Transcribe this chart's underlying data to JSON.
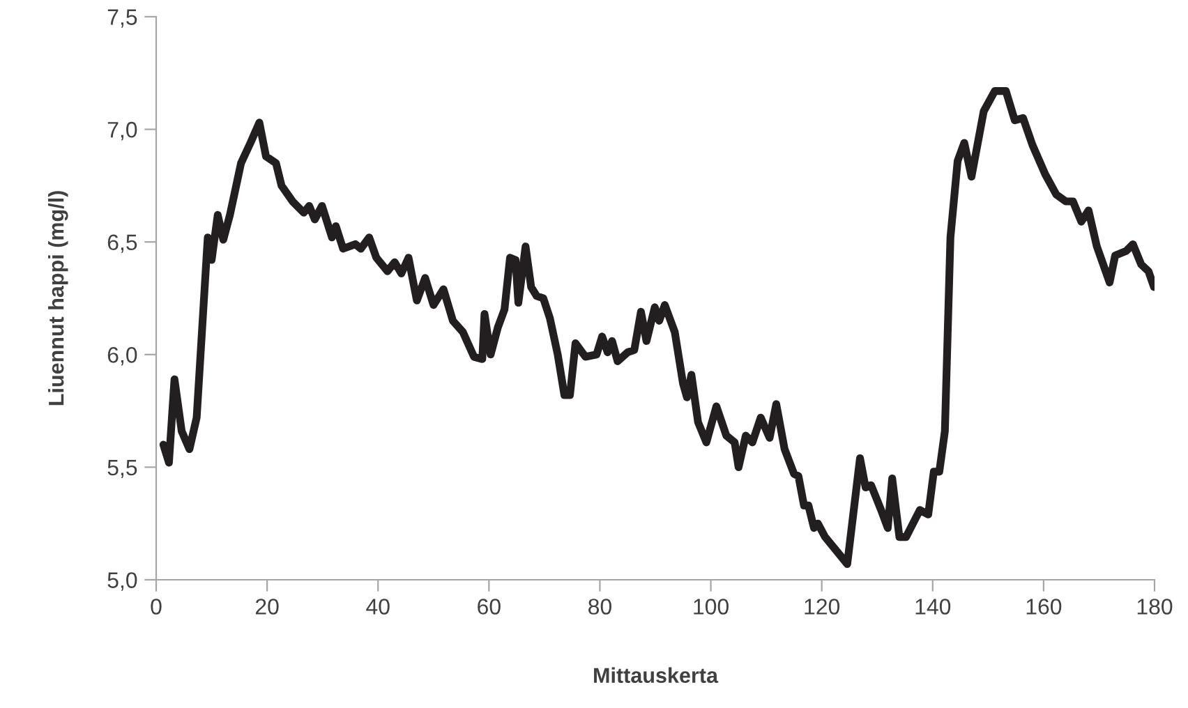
{
  "chart_data": {
    "type": "line",
    "xlabel": "Mittauskerta",
    "ylabel": "Liuennut happi (mg/l)",
    "x": [
      1.3,
      2.3,
      3.3,
      4.6,
      6.0,
      7.3,
      9.3,
      10,
      11.1,
      12.1,
      13.3,
      15.3,
      17,
      18.6,
      19.8,
      21.6,
      22.6,
      24.6,
      26.6,
      27.6,
      28.6,
      29.9,
      31.7,
      32.4,
      33.7,
      35.9,
      36.9,
      38.4,
      39.7,
      41.7,
      43,
      44.2,
      45.5,
      47,
      48.5,
      50,
      51.8,
      53.5,
      55.3,
      57.3,
      58.8,
      59.2,
      60.3,
      61.6,
      62.8,
      63.8,
      64.8,
      65.3,
      66.6,
      67.6,
      68.6,
      69.8,
      71,
      72.4,
      73.6,
      74.6,
      75.6,
      77.4,
      79.4,
      80.4,
      81.4,
      82.2,
      83.2,
      85,
      86.2,
      87.4,
      88.4,
      89.9,
      90.7,
      91.7,
      93.5,
      95,
      95.7,
      96.5,
      97.7,
      99.2,
      101,
      102.8,
      104.3,
      105,
      106.3,
      107.5,
      109,
      110.6,
      111.8,
      113.3,
      115,
      115.8,
      116.8,
      117.6,
      118.6,
      119.3,
      120.6,
      124.6,
      126.9,
      127.9,
      128.9,
      130.7,
      131.9,
      132.7,
      134,
      135.2,
      137.7,
      139.2,
      140.2,
      141.2,
      142.2,
      143.2,
      144.5,
      145.7,
      147,
      149.2,
      151.2,
      153.2,
      154.8,
      156.3,
      158,
      160.3,
      162.3,
      164,
      165.3,
      166.8,
      168.1,
      169.6,
      171.9,
      172.9,
      174.9,
      176.1,
      177.6,
      178.9,
      179.9
    ],
    "series": [
      {
        "color": "#231f20",
        "values": [
          5.6,
          5.52,
          5.89,
          5.66,
          5.58,
          5.72,
          6.52,
          6.42,
          6.62,
          6.51,
          6.62,
          6.85,
          6.94,
          7.03,
          6.88,
          6.85,
          6.75,
          6.68,
          6.63,
          6.66,
          6.6,
          6.66,
          6.52,
          6.57,
          6.47,
          6.49,
          6.47,
          6.52,
          6.43,
          6.37,
          6.41,
          6.36,
          6.43,
          6.24,
          6.34,
          6.22,
          6.29,
          6.15,
          6.1,
          5.99,
          5.98,
          6.18,
          6.0,
          6.12,
          6.2,
          6.43,
          6.42,
          6.23,
          6.48,
          6.3,
          6.26,
          6.25,
          6.16,
          6.0,
          5.82,
          5.82,
          6.05,
          5.99,
          6.0,
          6.08,
          6.01,
          6.06,
          5.97,
          6.01,
          6.02,
          6.19,
          6.06,
          6.21,
          6.15,
          6.22,
          6.1,
          5.87,
          5.81,
          5.91,
          5.7,
          5.61,
          5.77,
          5.64,
          5.61,
          5.5,
          5.64,
          5.61,
          5.72,
          5.63,
          5.78,
          5.58,
          5.47,
          5.46,
          5.33,
          5.33,
          5.23,
          5.25,
          5.19,
          5.07,
          5.54,
          5.41,
          5.42,
          5.31,
          5.23,
          5.45,
          5.19,
          5.19,
          5.31,
          5.29,
          5.48,
          5.48,
          5.66,
          6.52,
          6.86,
          6.94,
          6.79,
          7.08,
          7.17,
          7.17,
          7.04,
          7.05,
          6.93,
          6.8,
          6.71,
          6.68,
          6.68,
          6.59,
          6.64,
          6.48,
          6.32,
          6.44,
          6.46,
          6.49,
          6.4,
          6.37,
          6.3
        ]
      }
    ],
    "xlim": [
      0,
      180
    ],
    "xticks": [
      0,
      20,
      40,
      60,
      80,
      100,
      120,
      140,
      160,
      180
    ],
    "ylim": [
      5.0,
      7.5
    ],
    "yticks": [
      {
        "value": 5.0,
        "label": "5,0"
      },
      {
        "value": 5.5,
        "label": "5,5"
      },
      {
        "value": 6.0,
        "label": "6,0"
      },
      {
        "value": 6.5,
        "label": "6,5"
      },
      {
        "value": 7.0,
        "label": "7,0"
      },
      {
        "value": 7.5,
        "label": "7,5"
      }
    ],
    "grid": false,
    "legend": false,
    "marker": "none",
    "line_style": "solid"
  }
}
